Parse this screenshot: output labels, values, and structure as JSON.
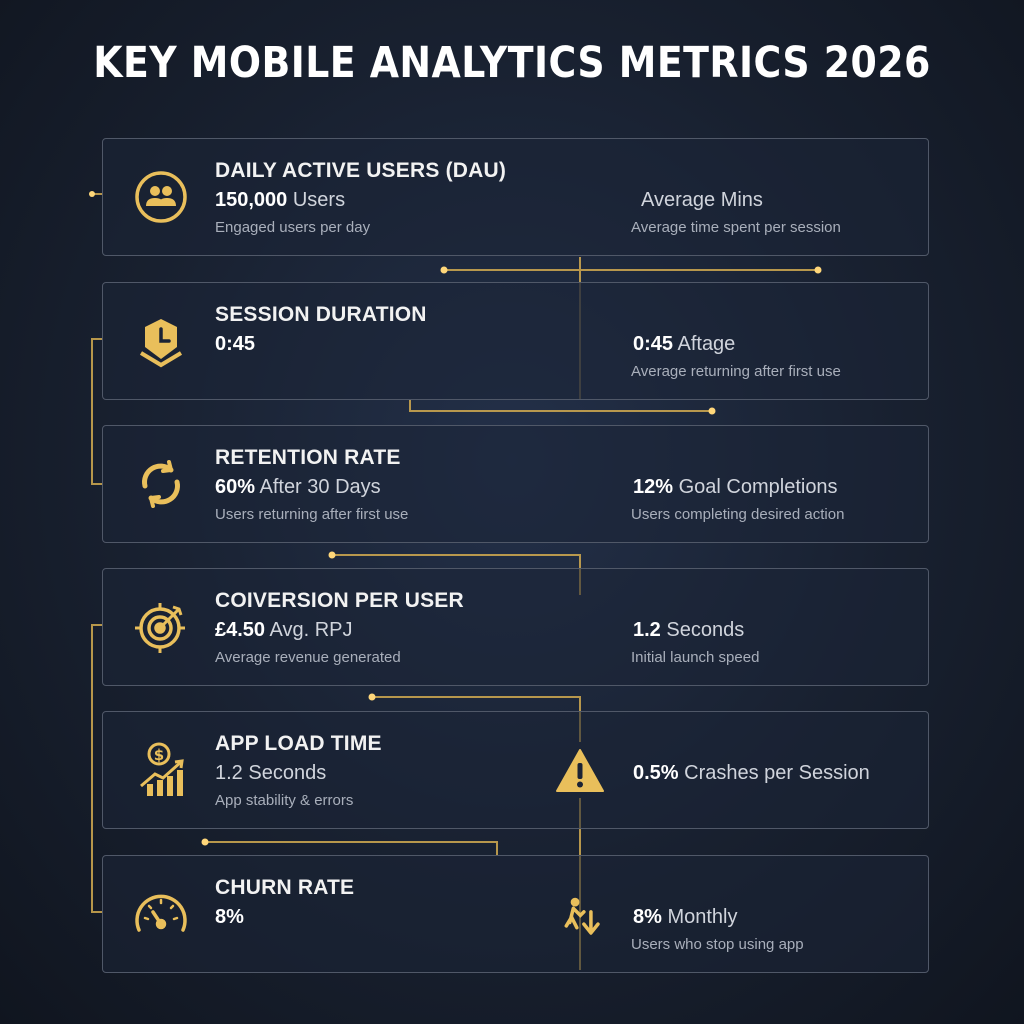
{
  "title": "KEY MOBILE ANALYTICS METRICS 2026",
  "accent_color": "#e9bf5b",
  "cards": [
    {
      "icon": "users-icon",
      "title": "DAILY ACTIVE USERS (DAU)",
      "value": "150,000",
      "unit": "Users",
      "desc": "Engaged users per day",
      "right_value": "",
      "right_unit": "Average Mins",
      "right_desc": "Average time spent per session"
    },
    {
      "icon": "clock-shield-icon",
      "title": "SESSION DURATION",
      "value": "0:45",
      "unit": "",
      "desc": "",
      "right_value": "0:45",
      "right_unit": "Aftage",
      "right_desc": "Average returning after first use"
    },
    {
      "icon": "refresh-icon",
      "title": "RETENTION RATE",
      "value": "60%",
      "unit": "After 30 Days",
      "desc": "Users returning after first use",
      "right_value": "12%",
      "right_unit": "Goal Completions",
      "right_desc": "Users completing desired action"
    },
    {
      "icon": "target-icon",
      "title": "COIVERSION PER USER",
      "value": "£4.50",
      "unit": "Avg. RPJ",
      "desc": "Average revenue generated",
      "right_value": "1.2",
      "right_unit": "Seconds",
      "right_desc": "Initial launch speed"
    },
    {
      "icon": "revenue-growth-icon",
      "title": "APP LOAD TIME",
      "value": "",
      "unit": "1.2 Seconds",
      "desc": "App stability & errors",
      "right_icon": "warning-icon",
      "right_value": "0.5%",
      "right_unit": "Crashes per Session",
      "right_desc": ""
    },
    {
      "icon": "speedometer-icon",
      "title": "CHURN RATE",
      "value": "8%",
      "unit": "",
      "desc": "",
      "right_icon": "user-down-icon",
      "right_value": "8%",
      "right_unit": "Monthly",
      "right_desc": "Users who stop using app"
    }
  ]
}
